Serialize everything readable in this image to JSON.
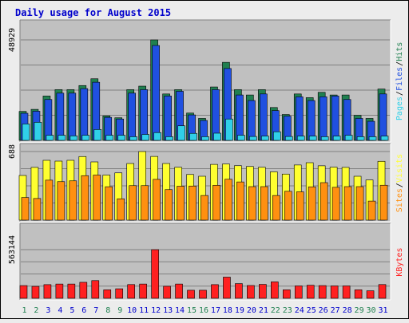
{
  "title": "Daily usage for August 2015",
  "colors": {
    "background": "#ececec",
    "panel": "#c0c0c0",
    "title": "#0000cc",
    "hits": "#208050",
    "files": "#2050e0",
    "pages": "#30d0e8",
    "visits": "#ffff30",
    "sites": "#ff9010",
    "kbytes": "#ff2020",
    "weekend_label": "#208050",
    "weekday_label": "#0000cc"
  },
  "chart_data": [
    {
      "type": "bar",
      "name": "hits-files-pages",
      "x": [
        1,
        2,
        3,
        4,
        5,
        6,
        7,
        8,
        9,
        10,
        11,
        12,
        13,
        14,
        15,
        16,
        17,
        18,
        19,
        20,
        21,
        22,
        23,
        24,
        25,
        26,
        27,
        28,
        29,
        30,
        31
      ],
      "ymax_label": "48929",
      "ylim": [
        0,
        48929
      ],
      "grid": true,
      "legend": [
        {
          "label": "Hits",
          "color": "#208050"
        },
        {
          "label": "Files",
          "color": "#2050e0"
        },
        {
          "label": "Pages",
          "color": "#30d0e8"
        }
      ],
      "series": [
        {
          "name": "Hits",
          "values": [
            14100,
            15100,
            21600,
            24700,
            24700,
            26700,
            30000,
            11900,
            11000,
            24700,
            26400,
            48929,
            22600,
            24700,
            13300,
            10700,
            26000,
            38000,
            24700,
            22100,
            24700,
            16000,
            12600,
            22600,
            20800,
            23400,
            22100,
            22100,
            12200,
            10700,
            25000
          ]
        },
        {
          "name": "Files",
          "values": [
            13200,
            14200,
            19900,
            23000,
            23000,
            25200,
            28300,
            11200,
            10400,
            23000,
            24700,
            46200,
            21600,
            23900,
            12400,
            9700,
            24700,
            35000,
            22100,
            19400,
            22600,
            14500,
            11800,
            21200,
            19400,
            21200,
            21600,
            19900,
            10700,
            9300,
            22600
          ]
        },
        {
          "name": "Pages",
          "values": [
            8000,
            8800,
            2500,
            2500,
            2200,
            2500,
            5300,
            2500,
            2500,
            1800,
            2900,
            3800,
            1800,
            7100,
            3400,
            1800,
            3500,
            10400,
            2500,
            1900,
            2100,
            4200,
            1900,
            2100,
            2100,
            1800,
            2100,
            2500,
            1800,
            1800,
            2100
          ]
        }
      ]
    },
    {
      "type": "bar",
      "name": "visits-sites",
      "x": [
        1,
        2,
        3,
        4,
        5,
        6,
        7,
        8,
        9,
        10,
        11,
        12,
        13,
        14,
        15,
        16,
        17,
        18,
        19,
        20,
        21,
        22,
        23,
        24,
        25,
        26,
        27,
        28,
        29,
        30,
        31
      ],
      "ymax_label": "688",
      "ylim": [
        0,
        688
      ],
      "grid": true,
      "legend": [
        {
          "label": "Visits",
          "color": "#ffff30"
        },
        {
          "label": "Sites",
          "color": "#ff9010"
        }
      ],
      "series": [
        {
          "name": "Visits",
          "values": [
            448,
            529,
            600,
            592,
            600,
            638,
            584,
            452,
            474,
            568,
            688,
            639,
            568,
            530,
            458,
            440,
            559,
            563,
            546,
            538,
            530,
            484,
            462,
            553,
            576,
            545,
            531,
            529,
            440,
            403,
            590
          ]
        },
        {
          "name": "Sites",
          "values": [
            227,
            217,
            401,
            386,
            394,
            446,
            452,
            335,
            214,
            346,
            346,
            409,
            306,
            340,
            342,
            247,
            349,
            410,
            383,
            336,
            336,
            247,
            289,
            284,
            334,
            376,
            329,
            336,
            336,
            191,
            350
          ]
        }
      ]
    },
    {
      "type": "bar",
      "name": "kbytes",
      "x": [
        1,
        2,
        3,
        4,
        5,
        6,
        7,
        8,
        9,
        10,
        11,
        12,
        13,
        14,
        15,
        16,
        17,
        18,
        19,
        20,
        21,
        22,
        23,
        24,
        25,
        26,
        27,
        28,
        29,
        30,
        31
      ],
      "ymax_label": "563144",
      "ylim": [
        0,
        563144
      ],
      "grid": true,
      "legend": [
        {
          "label": "KBytes",
          "color": "#ff2020"
        }
      ],
      "series": [
        {
          "name": "KBytes",
          "values": [
            147000,
            138000,
            158000,
            165000,
            165000,
            185000,
            205000,
            98000,
            110000,
            159000,
            165000,
            563144,
            139000,
            165000,
            93000,
            93000,
            158000,
            245000,
            170000,
            148000,
            161000,
            190000,
            98000,
            143000,
            151000,
            147000,
            143000,
            143000,
            98000,
            87000,
            159000
          ]
        }
      ]
    }
  ]
}
